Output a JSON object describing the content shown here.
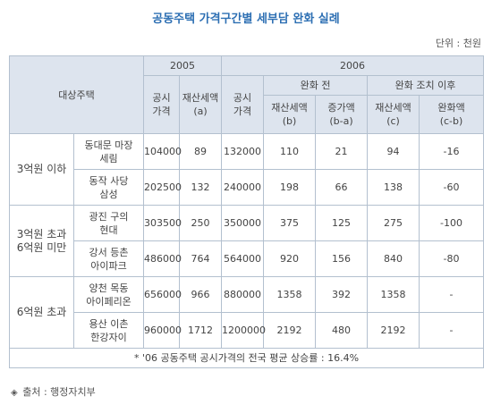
{
  "title": "공동주택 가격구간별 세부담 완화 실례",
  "unit": "단위 : 천원",
  "header": {
    "target": "대상주택",
    "y2005": "2005",
    "y2006": "2006",
    "before": "완화 전",
    "after": "완화 조치 이후",
    "pub_price_2005": "공시\n가격",
    "prop_tax_a": "재산세액\n(a)",
    "pub_price_2006": "공시\n가격",
    "prop_tax_b": "재산세액\n(b)",
    "increase_ba": "증가액\n(b-a)",
    "prop_tax_c": "재산세액\n(c)",
    "relief_cb": "완화액\n(c-b)"
  },
  "groups": [
    {
      "label": "3억원 이하"
    },
    {
      "label": "3억원 초과\n6억원 미만"
    },
    {
      "label": "6억원 초과"
    }
  ],
  "rows": [
    {
      "house": "동대문 마장\n세림",
      "p2005": "104000",
      "a": "89",
      "p2006": "132000",
      "b": "110",
      "ba": "21",
      "c": "94",
      "cb": "-16"
    },
    {
      "house": "동작 사당\n삼성",
      "p2005": "202500",
      "a": "132",
      "p2006": "240000",
      "b": "198",
      "ba": "66",
      "c": "138",
      "cb": "-60"
    },
    {
      "house": "광진 구의\n현대",
      "p2005": "303500",
      "a": "250",
      "p2006": "350000",
      "b": "375",
      "ba": "125",
      "c": "275",
      "cb": "-100"
    },
    {
      "house": "강서 등촌\n아이파크",
      "p2005": "486000",
      "a": "764",
      "p2006": "564000",
      "b": "920",
      "ba": "156",
      "c": "840",
      "cb": "-80"
    },
    {
      "house": "양천 목동\n아이페리온",
      "p2005": "656000",
      "a": "966",
      "p2006": "880000",
      "b": "1358",
      "ba": "392",
      "c": "1358",
      "cb": "-"
    },
    {
      "house": "용산 이촌\n한강자이",
      "p2005": "960000",
      "a": "1712",
      "p2006": "1200000",
      "b": "2192",
      "ba": "480",
      "c": "2192",
      "cb": "-"
    }
  ],
  "footnote": "* '06 공동주택 공시가격의 전국 평균 상승률 : 16.4%",
  "source": {
    "icon": "diamond-icon",
    "text": "출처 : 행정자치부"
  },
  "colors": {
    "title": "#2d6fb3",
    "group_label": "#d31b1b",
    "header_bg": "#dde4ee",
    "border": "#b3c0cf"
  }
}
